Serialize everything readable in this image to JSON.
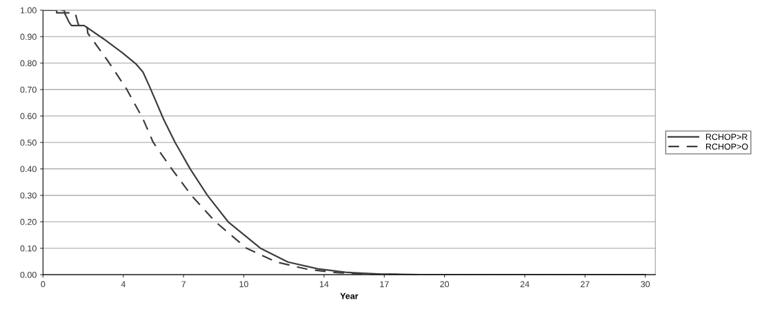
{
  "chart_data": {
    "type": "line",
    "xlabel": "Year",
    "xlim": [
      0,
      30.5
    ],
    "xticks": [
      0,
      4,
      7,
      10,
      14,
      17,
      20,
      24,
      27,
      30
    ],
    "ylim": [
      0,
      1
    ],
    "yticks": [
      {
        "value": 0,
        "label": "0.00"
      },
      {
        "value": 0.1,
        "label": "0.10"
      },
      {
        "value": 0.2,
        "label": "0.20"
      },
      {
        "value": 0.3,
        "label": "0.30"
      },
      {
        "value": 0.4,
        "label": "0.40"
      },
      {
        "value": 0.5,
        "label": "0.50"
      },
      {
        "value": 0.6,
        "label": "0.60"
      },
      {
        "value": 0.7,
        "label": "0.70"
      },
      {
        "value": 0.8,
        "label": "0.80"
      },
      {
        "value": 0.9,
        "label": "0.90"
      },
      {
        "value": 1,
        "label": "1.00"
      }
    ],
    "grid": "y",
    "legend": "right",
    "series": [
      {
        "name": "RCHOP>R",
        "color": "#3c3c3c",
        "line_style": "solid",
        "x": [
          0,
          0.68,
          0.68,
          1.07,
          1.31,
          1.42,
          2.05,
          3.03,
          3.95,
          4.64,
          4.98,
          5.32,
          6.01,
          6.12,
          6.58,
          7.33,
          8.19,
          9.22,
          10.83,
          12.2,
          13.69,
          15.07,
          16.7,
          18.8,
          30
        ],
        "values": [
          1.0,
          1.0,
          0.99,
          0.99,
          0.953,
          0.942,
          0.942,
          0.891,
          0.839,
          0.796,
          0.766,
          0.709,
          0.587,
          0.57,
          0.5,
          0.4,
          0.3,
          0.2,
          0.1,
          0.048,
          0.022,
          0.009,
          0.003,
          0,
          0
        ]
      },
      {
        "name": "RCHOP>O",
        "color": "#3c3c3c",
        "line_style": "dashed",
        "x": [
          0,
          1.07,
          1.07,
          1.6,
          1.75,
          2.0,
          2.2,
          2.23,
          3.26,
          4.17,
          4.98,
          5.09,
          5.49,
          6.41,
          7.39,
          8.59,
          10.14,
          11.62,
          13.2,
          14.61,
          16.5,
          18.5,
          30
        ],
        "values": [
          1.0,
          1.0,
          0.99,
          0.99,
          0.948,
          0.935,
          0.935,
          0.913,
          0.805,
          0.701,
          0.589,
          0.57,
          0.5,
          0.4,
          0.3,
          0.2,
          0.1,
          0.048,
          0.02,
          0.008,
          0.002,
          0,
          0
        ]
      }
    ]
  }
}
